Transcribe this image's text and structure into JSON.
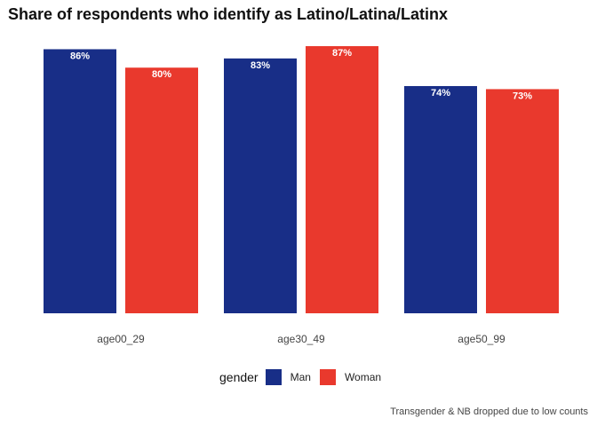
{
  "chart_data": {
    "type": "bar",
    "title": "Share of respondents who identify as Latino/Latina/Latinx",
    "categories": [
      "age00_29",
      "age30_49",
      "age50_99"
    ],
    "series": [
      {
        "name": "Man",
        "color": "#182E87",
        "values": [
          86,
          83,
          74
        ],
        "labels": [
          "86%",
          "83%",
          "74%"
        ]
      },
      {
        "name": "Woman",
        "color": "#E9392D",
        "values": [
          80,
          87,
          73
        ],
        "labels": [
          "80%",
          "87%",
          "73%"
        ]
      }
    ],
    "ylim": [
      0,
      87
    ],
    "grid": false,
    "legend_title": "gender",
    "legend_position": "bottom",
    "caption": "Transgender & NB dropped due to low counts"
  }
}
